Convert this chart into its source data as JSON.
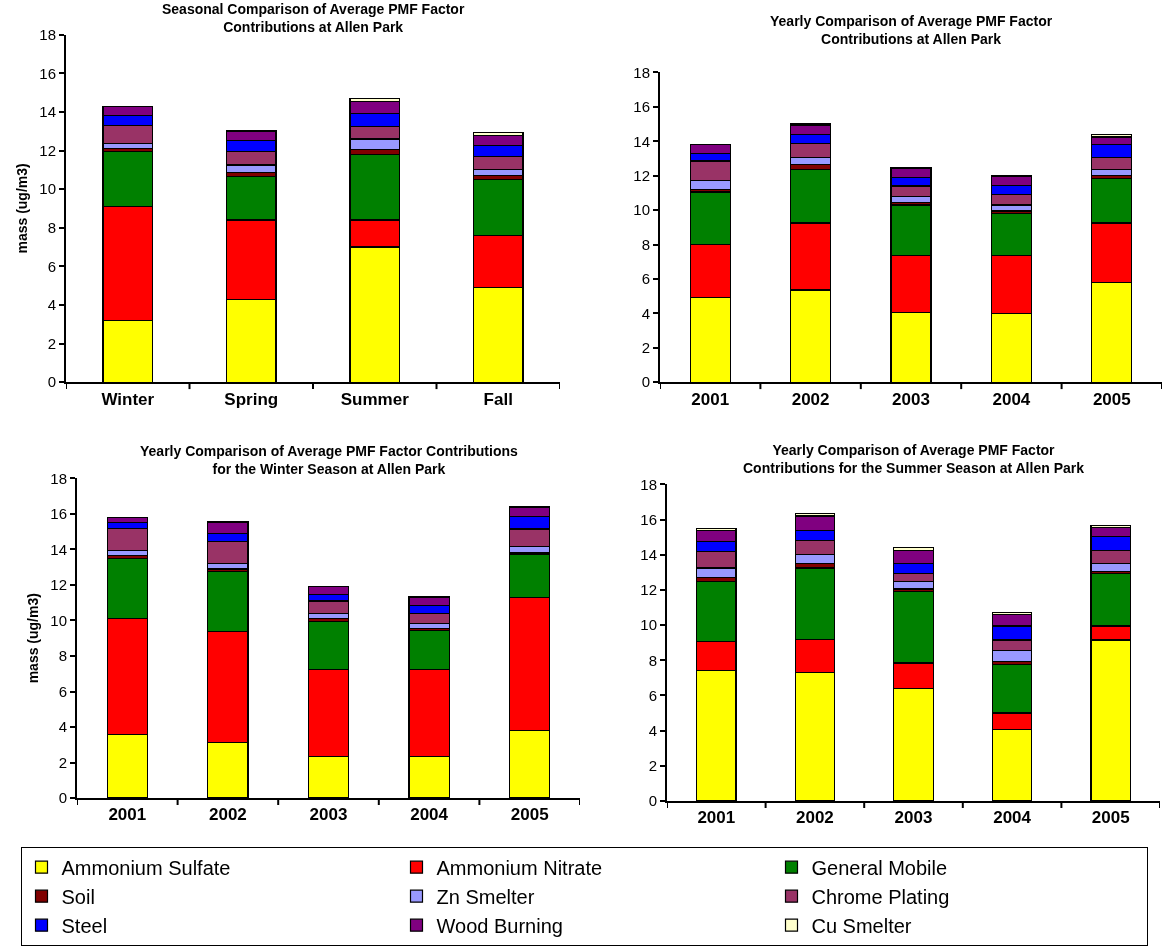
{
  "chart_data": [
    {
      "type": "bar",
      "stacked": true,
      "title": "Seasonal Comparison of Average PMF Factor\nContributions at Allen Park",
      "ylabel": "mass (ug/m3)",
      "categories": [
        "Winter",
        "Spring",
        "Summer",
        "Fall"
      ],
      "ylim": [
        0,
        18
      ],
      "yticks": [
        0,
        2,
        4,
        6,
        8,
        10,
        12,
        14,
        16,
        18
      ],
      "legend": "bottom",
      "series": [
        {
          "name": "Ammonium Sulfate",
          "color": "#ffff00",
          "values": [
            3.2,
            4.3,
            7.0,
            4.9
          ]
        },
        {
          "name": "Ammonium Nitrate",
          "color": "#ff0000",
          "values": [
            5.9,
            4.1,
            1.4,
            2.7
          ]
        },
        {
          "name": "General Mobile",
          "color": "#008000",
          "values": [
            2.85,
            2.25,
            3.4,
            2.9
          ]
        },
        {
          "name": "Soil",
          "color": "#800000",
          "values": [
            0.15,
            0.2,
            0.25,
            0.2
          ]
        },
        {
          "name": "Zn Smelter",
          "color": "#9999ff",
          "values": [
            0.25,
            0.4,
            0.55,
            0.3
          ]
        },
        {
          "name": "Chrome Plating",
          "color": "#993366",
          "values": [
            0.95,
            0.7,
            0.65,
            0.7
          ]
        },
        {
          "name": "Steel",
          "color": "#0000ff",
          "values": [
            0.5,
            0.55,
            0.65,
            0.55
          ]
        },
        {
          "name": "Wood Burning",
          "color": "#800080",
          "values": [
            0.5,
            0.5,
            0.65,
            0.55
          ]
        },
        {
          "name": "Cu Smelter",
          "color": "#ffffcc",
          "values": [
            null,
            0.05,
            0.15,
            0.15
          ]
        }
      ]
    },
    {
      "type": "bar",
      "stacked": true,
      "title": "Yearly Comparison of Average PMF Factor\nContributions at Allen Park",
      "categories": [
        "2001",
        "2002",
        "2003",
        "2004",
        "2005"
      ],
      "ylim": [
        0,
        18
      ],
      "yticks": [
        0,
        2,
        4,
        6,
        8,
        10,
        12,
        14,
        16,
        18
      ],
      "legend": "bottom",
      "series": [
        {
          "name": "Ammonium Sulfate",
          "color": "#ffff00",
          "values": [
            4.9,
            5.35,
            4.05,
            4.0,
            5.8
          ]
        },
        {
          "name": "Ammonium Nitrate",
          "color": "#ff0000",
          "values": [
            3.1,
            3.9,
            3.3,
            3.35,
            3.45
          ]
        },
        {
          "name": "General Mobile",
          "color": "#008000",
          "values": [
            3.05,
            3.1,
            2.95,
            2.45,
            2.6
          ]
        },
        {
          "name": "Soil",
          "color": "#800000",
          "values": [
            0.15,
            0.3,
            0.15,
            0.15,
            0.15
          ]
        },
        {
          "name": "Zn Smelter",
          "color": "#9999ff",
          "values": [
            0.5,
            0.4,
            0.35,
            0.35,
            0.35
          ]
        },
        {
          "name": "Chrome Plating",
          "color": "#993366",
          "values": [
            1.15,
            0.8,
            0.6,
            0.6,
            0.7
          ]
        },
        {
          "name": "Steel",
          "color": "#0000ff",
          "values": [
            0.45,
            0.55,
            0.5,
            0.55,
            0.75
          ]
        },
        {
          "name": "Wood Burning",
          "color": "#800080",
          "values": [
            0.5,
            0.55,
            0.55,
            0.5,
            0.45
          ]
        },
        {
          "name": "Cu Smelter",
          "color": "#ffffcc",
          "values": [
            null,
            0.05,
            null,
            0.05,
            0.15
          ]
        }
      ]
    },
    {
      "type": "bar",
      "stacked": true,
      "title": "Yearly Comparison of Average PMF Factor Contributions\nfor the Winter Season at Allen Park",
      "ylabel": "mass (ug/m3)",
      "categories": [
        "2001",
        "2002",
        "2003",
        "2004",
        "2005"
      ],
      "ylim": [
        0,
        18
      ],
      "yticks": [
        0,
        2,
        4,
        6,
        8,
        10,
        12,
        14,
        16,
        18
      ],
      "legend": "bottom",
      "series": [
        {
          "name": "Ammonium Sulfate",
          "color": "#ffff00",
          "values": [
            3.6,
            3.15,
            2.35,
            2.35,
            3.8
          ]
        },
        {
          "name": "Ammonium Nitrate",
          "color": "#ff0000",
          "values": [
            6.5,
            6.25,
            4.9,
            4.9,
            7.5
          ]
        },
        {
          "name": "General Mobile",
          "color": "#008000",
          "values": [
            3.4,
            3.35,
            2.7,
            2.2,
            2.45
          ]
        },
        {
          "name": "Soil",
          "color": "#800000",
          "values": [
            0.15,
            0.15,
            0.15,
            0.1,
            0.05
          ]
        },
        {
          "name": "Zn Smelter",
          "color": "#9999ff",
          "values": [
            0.3,
            0.3,
            0.3,
            0.3,
            0.35
          ]
        },
        {
          "name": "Chrome Plating",
          "color": "#993366",
          "values": [
            1.25,
            1.25,
            0.7,
            0.55,
            1.0
          ]
        },
        {
          "name": "Steel",
          "color": "#0000ff",
          "values": [
            0.3,
            0.45,
            0.35,
            0.45,
            0.7
          ]
        },
        {
          "name": "Wood Burning",
          "color": "#800080",
          "values": [
            0.3,
            0.6,
            0.45,
            0.45,
            0.5
          ]
        },
        {
          "name": "Cu Smelter",
          "color": "#ffffcc",
          "values": [
            null,
            0.05,
            null,
            0.05,
            0.05
          ]
        }
      ]
    },
    {
      "type": "bar",
      "stacked": true,
      "title": "Yearly Comparison of Average PMF Factor\nContributions for the Summer Season at Allen Park",
      "categories": [
        "2001",
        "2002",
        "2003",
        "2004",
        "2005"
      ],
      "ylim": [
        0,
        18
      ],
      "yticks": [
        0,
        2,
        4,
        6,
        8,
        10,
        12,
        14,
        16,
        18
      ],
      "legend": "bottom",
      "series": [
        {
          "name": "Ammonium Sulfate",
          "color": "#ffff00",
          "values": [
            7.4,
            7.3,
            6.4,
            4.05,
            9.15
          ]
        },
        {
          "name": "Ammonium Nitrate",
          "color": "#ff0000",
          "values": [
            1.65,
            1.9,
            1.45,
            0.95,
            0.8
          ]
        },
        {
          "name": "General Mobile",
          "color": "#008000",
          "values": [
            3.45,
            4.05,
            4.05,
            2.75,
            3.0
          ]
        },
        {
          "name": "Soil",
          "color": "#800000",
          "values": [
            0.2,
            0.25,
            0.15,
            0.2,
            0.1
          ]
        },
        {
          "name": "Zn Smelter",
          "color": "#9999ff",
          "values": [
            0.55,
            0.5,
            0.45,
            0.6,
            0.45
          ]
        },
        {
          "name": "Chrome Plating",
          "color": "#993366",
          "values": [
            0.95,
            0.8,
            0.45,
            0.6,
            0.75
          ]
        },
        {
          "name": "Steel",
          "color": "#0000ff",
          "values": [
            0.55,
            0.6,
            0.55,
            0.8,
            0.8
          ]
        },
        {
          "name": "Wood Burning",
          "color": "#800080",
          "values": [
            0.65,
            0.8,
            0.75,
            0.65,
            0.5
          ]
        },
        {
          "name": "Cu Smelter",
          "color": "#ffffcc",
          "values": [
            0.1,
            0.15,
            0.15,
            0.1,
            0.1
          ]
        }
      ]
    }
  ]
}
